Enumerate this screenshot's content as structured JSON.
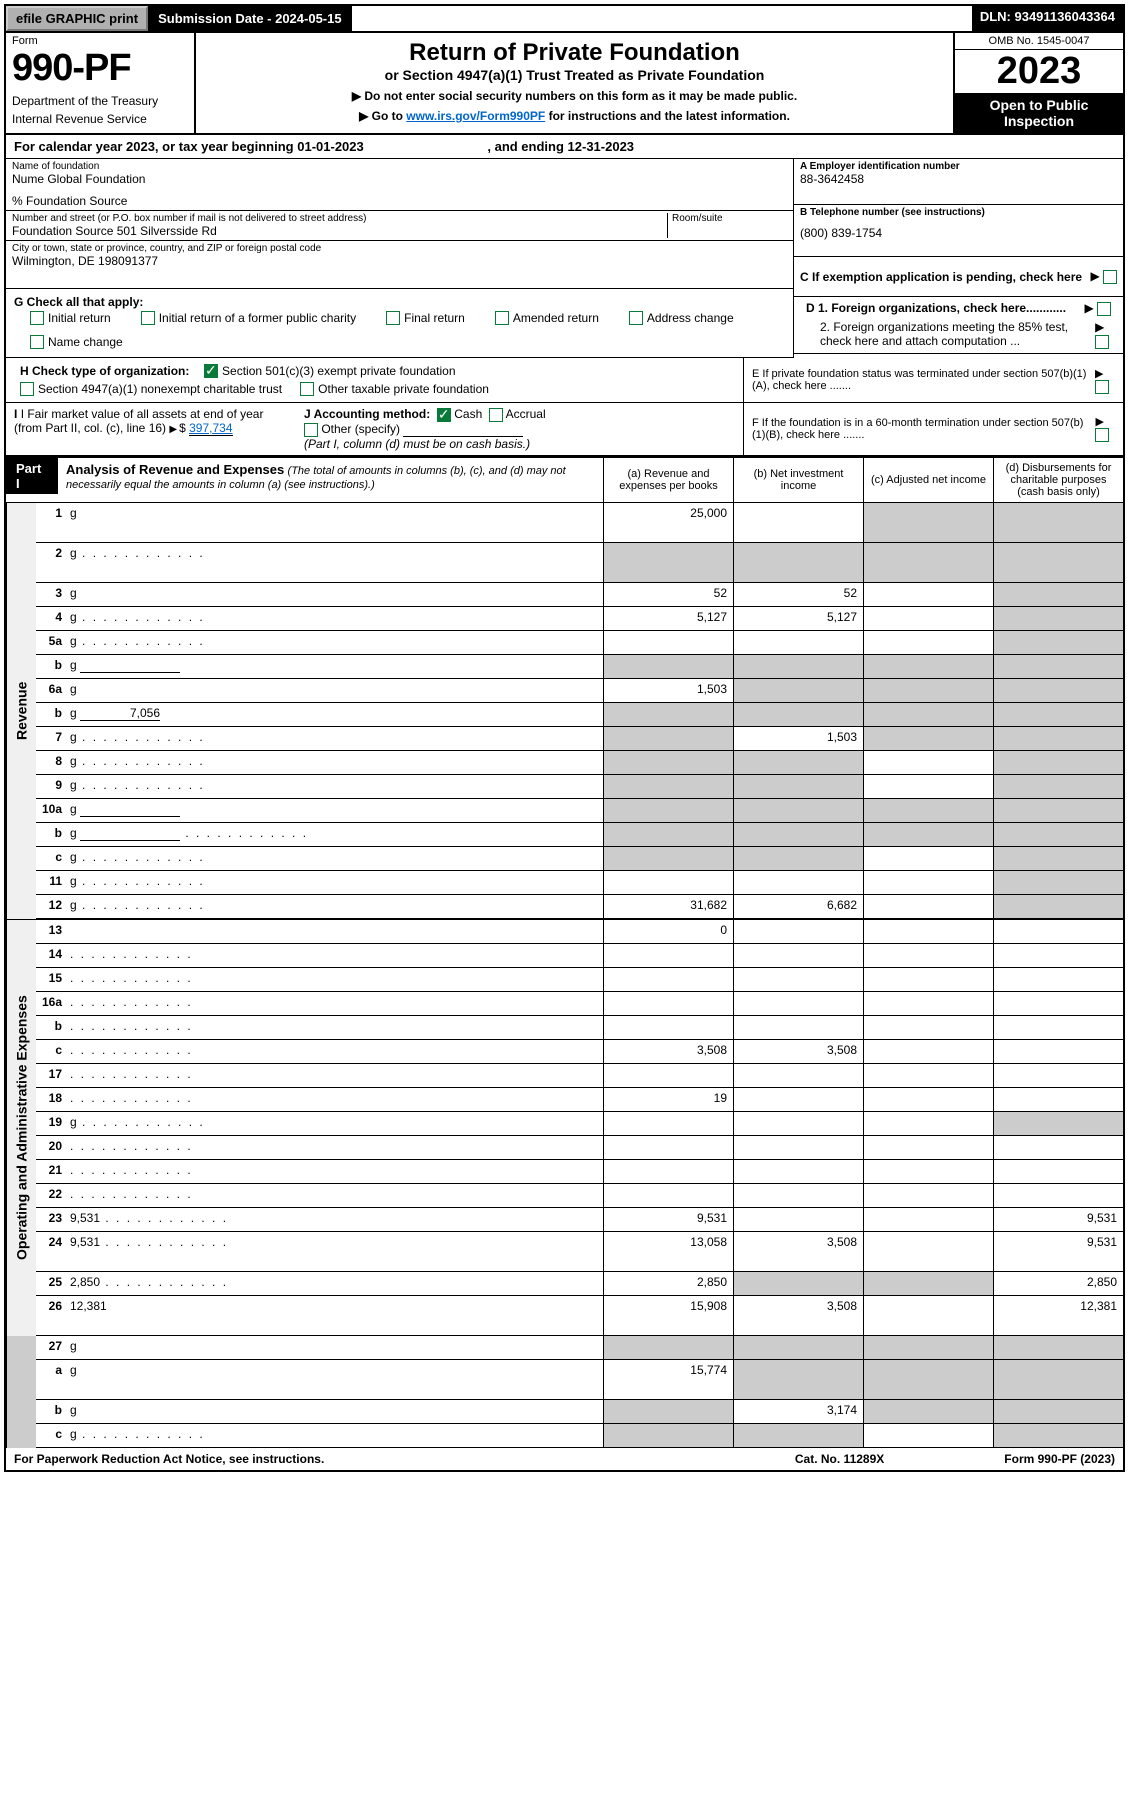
{
  "topbar": {
    "efile": "efile GRAPHIC print",
    "sub_date_label": "Submission Date - 2024-05-15",
    "dln": "DLN: 93491136043364"
  },
  "header": {
    "form_label": "Form",
    "form_num": "990-PF",
    "dept1": "Department of the Treasury",
    "dept2": "Internal Revenue Service",
    "title": "Return of Private Foundation",
    "sub": "or Section 4947(a)(1) Trust Treated as Private Foundation",
    "note1": "▶ Do not enter social security numbers on this form as it may be made public.",
    "note2_pre": "▶ Go to ",
    "note2_link": "www.irs.gov/Form990PF",
    "note2_post": " for instructions and the latest information.",
    "omb": "OMB No. 1545-0047",
    "year": "2023",
    "open_pub": "Open to Public Inspection"
  },
  "cal_year": {
    "pre": "For calendar year 2023, or tax year beginning ",
    "start": "01-01-2023",
    "mid": ", and ending ",
    "end": "12-31-2023"
  },
  "info": {
    "name_label": "Name of foundation",
    "name": "Nume Global Foundation",
    "source": "% Foundation Source",
    "addr_label": "Number and street (or P.O. box number if mail is not delivered to street address)",
    "addr": "Foundation Source 501 Silversside Rd",
    "room_label": "Room/suite",
    "city_label": "City or town, state or province, country, and ZIP or foreign postal code",
    "city": "Wilmington, DE  198091377",
    "a_label": "A Employer identification number",
    "a_val": "88-3642458",
    "b_label": "B Telephone number (see instructions)",
    "b_val": "(800) 839-1754",
    "c_label": "C If exemption application is pending, check here",
    "d1": "D 1. Foreign organizations, check here............",
    "d2": "2. Foreign organizations meeting the 85% test, check here and attach computation ...",
    "e": "E  If private foundation status was terminated under section 507(b)(1)(A), check here .......",
    "f": "F  If the foundation is in a 60-month termination under section 507(b)(1)(B), check here .......",
    "g_label": "G Check all that apply:",
    "g_opts": [
      "Initial return",
      "Initial return of a former public charity",
      "Final return",
      "Amended return",
      "Address change",
      "Name change"
    ],
    "h_label": "H Check type of organization:",
    "h1": "Section 501(c)(3) exempt private foundation",
    "h2": "Section 4947(a)(1) nonexempt charitable trust",
    "h3": "Other taxable private foundation",
    "i_label": "I Fair market value of all assets at end of year (from Part II, col. (c), line 16)",
    "i_val": "397,734",
    "j_label": "J Accounting method:",
    "j_cash": "Cash",
    "j_accrual": "Accrual",
    "j_other": "Other (specify)",
    "j_note": "(Part I, column (d) must be on cash basis.)"
  },
  "part1": {
    "label": "Part I",
    "title": "Analysis of Revenue and Expenses",
    "sub": "(The total of amounts in columns (b), (c), and (d) may not necessarily equal the amounts in column (a) (see instructions).)",
    "col_a": "(a)   Revenue and expenses per books",
    "col_b": "(b)   Net investment income",
    "col_c": "(c)   Adjusted net income",
    "col_d": "(d)   Disbursements for charitable purposes (cash basis only)"
  },
  "vert": {
    "rev": "Revenue",
    "exp": "Operating and Administrative Expenses"
  },
  "rows": [
    {
      "n": "1",
      "d": "g",
      "a": "25,000",
      "b": "",
      "c": "g",
      "tall": true
    },
    {
      "n": "2",
      "d": "g",
      "dots": true,
      "a": "g",
      "b": "g",
      "c": "g",
      "tall": true
    },
    {
      "n": "3",
      "d": "g",
      "a": "52",
      "b": "52",
      "c": ""
    },
    {
      "n": "4",
      "d": "g",
      "dots": true,
      "a": "5,127",
      "b": "5,127",
      "c": ""
    },
    {
      "n": "5a",
      "d": "g",
      "dots": true,
      "a": "",
      "b": "",
      "c": ""
    },
    {
      "n": "b",
      "d": "g",
      "inline": true,
      "a": "g",
      "b": "g",
      "c": "g"
    },
    {
      "n": "6a",
      "d": "g",
      "a": "1,503",
      "b": "g",
      "c": "g"
    },
    {
      "n": "b",
      "d": "g",
      "inline": true,
      "iv": "7,056",
      "a": "g",
      "b": "g",
      "c": "g"
    },
    {
      "n": "7",
      "d": "g",
      "dots": true,
      "a": "g",
      "b": "1,503",
      "c": "g"
    },
    {
      "n": "8",
      "d": "g",
      "dots": true,
      "a": "g",
      "b": "g",
      "c": ""
    },
    {
      "n": "9",
      "d": "g",
      "dots": true,
      "a": "g",
      "b": "g",
      "c": ""
    },
    {
      "n": "10a",
      "d": "g",
      "inline": true,
      "a": "g",
      "b": "g",
      "c": "g"
    },
    {
      "n": "b",
      "d": "g",
      "dots": true,
      "inline": true,
      "a": "g",
      "b": "g",
      "c": "g"
    },
    {
      "n": "c",
      "d": "g",
      "dots": true,
      "a": "g",
      "b": "g",
      "c": ""
    },
    {
      "n": "11",
      "d": "g",
      "dots": true,
      "a": "",
      "b": "",
      "c": ""
    },
    {
      "n": "12",
      "d": "g",
      "dots": true,
      "a": "31,682",
      "b": "6,682",
      "c": ""
    }
  ],
  "rows2": [
    {
      "n": "13",
      "d": "",
      "a": "0",
      "b": "",
      "c": ""
    },
    {
      "n": "14",
      "d": "",
      "dots": true,
      "a": "",
      "b": "",
      "c": ""
    },
    {
      "n": "15",
      "d": "",
      "dots": true,
      "a": "",
      "b": "",
      "c": ""
    },
    {
      "n": "16a",
      "d": "",
      "dots": true,
      "a": "",
      "b": "",
      "c": ""
    },
    {
      "n": "b",
      "d": "",
      "dots": true,
      "a": "",
      "b": "",
      "c": ""
    },
    {
      "n": "c",
      "d": "",
      "dots": true,
      "a": "3,508",
      "b": "3,508",
      "c": ""
    },
    {
      "n": "17",
      "d": "",
      "dots": true,
      "a": "",
      "b": "",
      "c": ""
    },
    {
      "n": "18",
      "d": "",
      "dots": true,
      "a": "19",
      "b": "",
      "c": ""
    },
    {
      "n": "19",
      "d": "g",
      "dots": true,
      "a": "",
      "b": "",
      "c": ""
    },
    {
      "n": "20",
      "d": "",
      "dots": true,
      "a": "",
      "b": "",
      "c": ""
    },
    {
      "n": "21",
      "d": "",
      "dots": true,
      "a": "",
      "b": "",
      "c": ""
    },
    {
      "n": "22",
      "d": "",
      "dots": true,
      "a": "",
      "b": "",
      "c": ""
    },
    {
      "n": "23",
      "d": "9,531",
      "dots": true,
      "a": "9,531",
      "b": "",
      "c": ""
    },
    {
      "n": "24",
      "d": "9,531",
      "dots": true,
      "a": "13,058",
      "b": "3,508",
      "c": "",
      "tall": true
    },
    {
      "n": "25",
      "d": "2,850",
      "dots": true,
      "a": "2,850",
      "b": "g",
      "c": "g"
    },
    {
      "n": "26",
      "d": "12,381",
      "a": "15,908",
      "b": "3,508",
      "c": "",
      "tall": true
    }
  ],
  "rows3": [
    {
      "n": "27",
      "d": "g",
      "a": "g",
      "b": "g",
      "c": "g"
    },
    {
      "n": "a",
      "d": "g",
      "a": "15,774",
      "b": "g",
      "c": "g",
      "tall": true
    },
    {
      "n": "b",
      "d": "g",
      "a": "g",
      "b": "3,174",
      "c": "g"
    },
    {
      "n": "c",
      "d": "g",
      "dots": true,
      "a": "g",
      "b": "g",
      "c": ""
    }
  ],
  "footer": {
    "left": "For Paperwork Reduction Act Notice, see instructions.",
    "mid": "Cat. No. 11289X",
    "right": "Form 990-PF (2023)"
  }
}
